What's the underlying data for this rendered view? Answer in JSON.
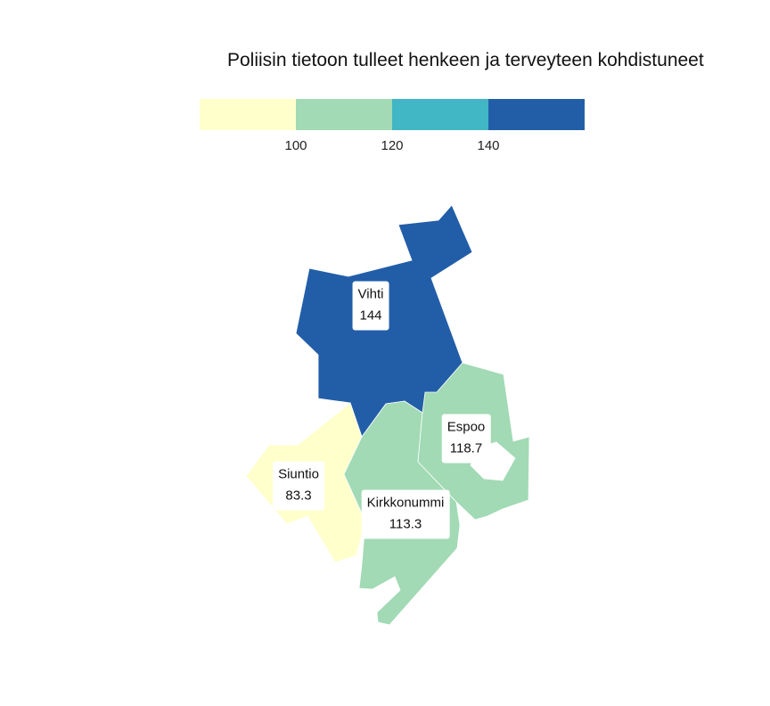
{
  "title": "Poliisin tietoon tulleet henkeen ja terveyteen kohdistuneet",
  "legend": {
    "colors": [
      "#ffffcc",
      "#a1dab4",
      "#41b6c4",
      "#225ea8"
    ],
    "ticks": [
      "100",
      "120",
      "140"
    ]
  },
  "regions": [
    {
      "id": "vihti",
      "name": "Vihti",
      "value": "144",
      "color": "#225ea8"
    },
    {
      "id": "siuntio",
      "name": "Siuntio",
      "value": "83.3",
      "color": "#ffffcc"
    },
    {
      "id": "kirkkonummi",
      "name": "Kirkkonummi",
      "value": "113.3",
      "color": "#a1dab4"
    },
    {
      "id": "espoo",
      "name": "Espoo",
      "value": "118.7",
      "color": "#a1dab4"
    }
  ]
}
